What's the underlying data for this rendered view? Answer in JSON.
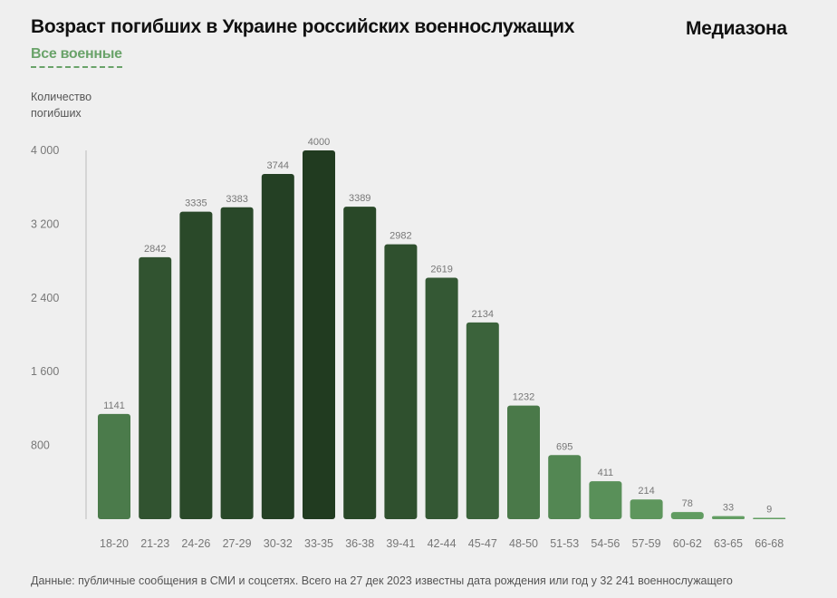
{
  "header": {
    "title": "Возраст погибших в Украине российских военнослужащих",
    "brand": "Медиазона",
    "active_tab": "Все военные"
  },
  "footer": {
    "source": "Данные: публичные сообщения в СМИ и соцсетях. Всего на 27 дек 2023 известны дата рождения или год у 32 241 военнослужащего"
  },
  "chart_data": {
    "type": "bar",
    "title": "Возраст погибших в Украине российских военнослужащих",
    "ylabel": "Количество погибших",
    "xlabel": "",
    "ylim": [
      0,
      4000
    ],
    "yticks": [
      800,
      1600,
      2400,
      3200,
      4000
    ],
    "ytick_labels": [
      "800",
      "1 600",
      "2 400",
      "3 200",
      "4 000"
    ],
    "grid": false,
    "categories": [
      "18-20",
      "21-23",
      "24-26",
      "27-29",
      "30-32",
      "33-35",
      "36-38",
      "39-41",
      "42-44",
      "45-47",
      "48-50",
      "51-53",
      "54-56",
      "57-59",
      "60-62",
      "63-65",
      "66-68"
    ],
    "values": [
      1141,
      2842,
      3335,
      3383,
      3744,
      4000,
      3389,
      2982,
      2619,
      2134,
      1232,
      695,
      411,
      214,
      78,
      33,
      9
    ],
    "colors": {
      "light": "#64a064",
      "dark": "#213b20",
      "label": "#777777"
    }
  }
}
